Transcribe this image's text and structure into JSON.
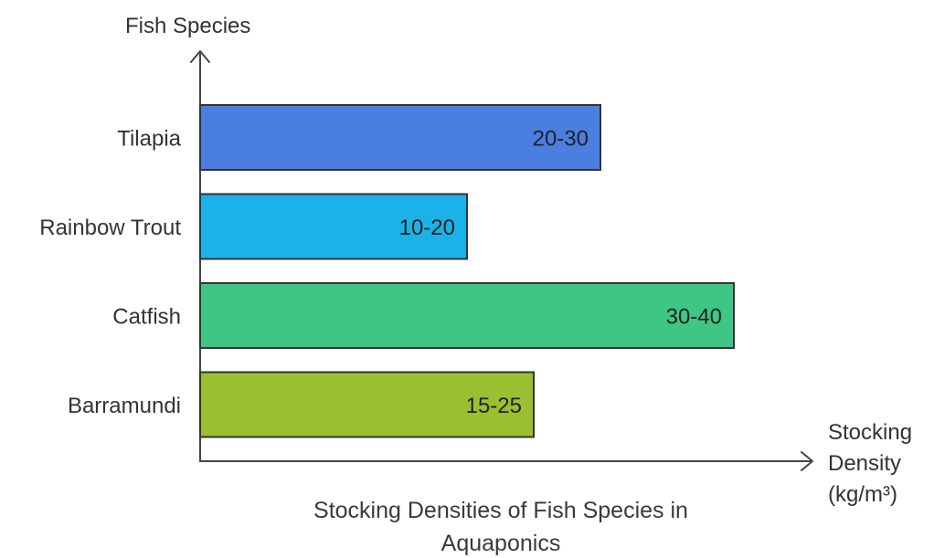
{
  "chart_data": {
    "type": "bar",
    "orientation": "horizontal",
    "title": "Stocking Densities of Fish Species in Aquaponics",
    "ylabel": "Fish Species",
    "xlabel": "Stocking Density (kg/m³)",
    "categories": [
      "Tilapia",
      "Rainbow Trout",
      "Catfish",
      "Barramundi"
    ],
    "values": [
      30,
      20,
      40,
      25
    ],
    "value_labels": [
      "20-30",
      "10-20",
      "30-40",
      "15-25"
    ],
    "colors": [
      "#4a7fe0",
      "#1bb2e8",
      "#3ec784",
      "#9abf30"
    ],
    "grid": false,
    "legend": "none"
  },
  "text": {
    "title_line1": "Stocking Densities of Fish Species in",
    "title_line2": "Aquaponics",
    "ylabel": "Fish Species",
    "xlabel_line1": "Stocking",
    "xlabel_line2": "Density",
    "xlabel_line3": "(kg/m³)"
  }
}
